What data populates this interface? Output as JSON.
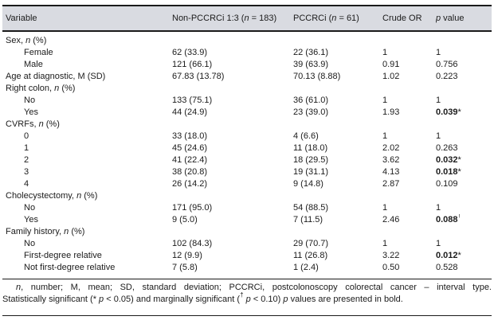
{
  "colors": {
    "header_background": "#d9dbe1",
    "rule": "#1a1a1a",
    "text": "#1b1b1b"
  },
  "table": {
    "columns": [
      "Variable",
      "Non-PCCRCi 1:3 (n = 183)",
      "PCCRCi (n = 61)",
      "Crude OR",
      "p value"
    ],
    "rows": [
      {
        "label": "Sex, n (%)",
        "indent": false,
        "non_pccrci": "",
        "pccrci": "",
        "crude_or": "",
        "p_value": "",
        "p_marker": "",
        "p_bold": false
      },
      {
        "label": "Female",
        "indent": true,
        "non_pccrci": "62 (33.9)",
        "pccrci": "22 (36.1)",
        "crude_or": "1",
        "p_value": "1",
        "p_marker": "",
        "p_bold": false
      },
      {
        "label": "Male",
        "indent": true,
        "non_pccrci": "121 (66.1)",
        "pccrci": "39 (63.9)",
        "crude_or": "0.91",
        "p_value": "0.756",
        "p_marker": "",
        "p_bold": false
      },
      {
        "label": "Age at diagnostic, M (SD)",
        "indent": false,
        "non_pccrci": "67.83 (13.78)",
        "pccrci": "70.13 (8.88)",
        "crude_or": "1.02",
        "p_value": "0.223",
        "p_marker": "",
        "p_bold": false
      },
      {
        "label": "Right colon, n (%)",
        "indent": false,
        "non_pccrci": "",
        "pccrci": "",
        "crude_or": "",
        "p_value": "",
        "p_marker": "",
        "p_bold": false
      },
      {
        "label": "No",
        "indent": true,
        "non_pccrci": "133 (75.1)",
        "pccrci": "36 (61.0)",
        "crude_or": "1",
        "p_value": "1",
        "p_marker": "",
        "p_bold": false
      },
      {
        "label": "Yes",
        "indent": true,
        "non_pccrci": "44 (24.9)",
        "pccrci": "23 (39.0)",
        "crude_or": "1.93",
        "p_value": "0.039",
        "p_marker": "*",
        "p_bold": true
      },
      {
        "label": "CVRFs, n (%)",
        "indent": false,
        "non_pccrci": "",
        "pccrci": "",
        "crude_or": "",
        "p_value": "",
        "p_marker": "",
        "p_bold": false
      },
      {
        "label": "0",
        "indent": true,
        "non_pccrci": "33 (18.0)",
        "pccrci": "4 (6.6)",
        "crude_or": "1",
        "p_value": "1",
        "p_marker": "",
        "p_bold": false
      },
      {
        "label": "1",
        "indent": true,
        "non_pccrci": "45 (24.6)",
        "pccrci": "11 (18.0)",
        "crude_or": "2.02",
        "p_value": "0.263",
        "p_marker": "",
        "p_bold": false
      },
      {
        "label": "2",
        "indent": true,
        "non_pccrci": "41 (22.4)",
        "pccrci": "18 (29.5)",
        "crude_or": "3.62",
        "p_value": "0.032",
        "p_marker": "*",
        "p_bold": true
      },
      {
        "label": "3",
        "indent": true,
        "non_pccrci": "38 (20.8)",
        "pccrci": "19 (31.1)",
        "crude_or": "4.13",
        "p_value": "0.018",
        "p_marker": "*",
        "p_bold": true
      },
      {
        "label": "4",
        "indent": true,
        "non_pccrci": "26 (14.2)",
        "pccrci": "9 (14.8)",
        "crude_or": "2.87",
        "p_value": "0.109",
        "p_marker": "",
        "p_bold": false
      },
      {
        "label": "Cholecystectomy, n (%)",
        "indent": false,
        "non_pccrci": "",
        "pccrci": "",
        "crude_or": "",
        "p_value": "",
        "p_marker": "",
        "p_bold": false
      },
      {
        "label": "No",
        "indent": true,
        "non_pccrci": "171 (95.0)",
        "pccrci": "54 (88.5)",
        "crude_or": "1",
        "p_value": "1",
        "p_marker": "",
        "p_bold": false
      },
      {
        "label": "Yes",
        "indent": true,
        "non_pccrci": "9 (5.0)",
        "pccrci": "7 (11.5)",
        "crude_or": "2.46",
        "p_value": "0.088",
        "p_marker": "†",
        "p_bold": true
      },
      {
        "label": "Family history, n (%)",
        "indent": false,
        "non_pccrci": "",
        "pccrci": "",
        "crude_or": "",
        "p_value": "",
        "p_marker": "",
        "p_bold": false
      },
      {
        "label": "No",
        "indent": true,
        "non_pccrci": "102 (84.3)",
        "pccrci": "29 (70.7)",
        "crude_or": "1",
        "p_value": "1",
        "p_marker": "",
        "p_bold": false
      },
      {
        "label": "First-degree relative",
        "indent": true,
        "non_pccrci": "12 (9.9)",
        "pccrci": "11 (26.8)",
        "crude_or": "3.22",
        "p_value": "0.012",
        "p_marker": "*",
        "p_bold": true
      },
      {
        "label": "Not first-degree relative",
        "indent": true,
        "non_pccrci": "7 (5.8)",
        "pccrci": "1 (2.4)",
        "crude_or": "0.50",
        "p_value": "0.528",
        "p_marker": "",
        "p_bold": false
      }
    ]
  },
  "footnote": {
    "line1_segments": [
      {
        "text": "n",
        "italic": true,
        "sup": false
      },
      {
        "text": ", number; M, mean; SD, standard deviation; PCCRCi, postcolonoscopy colorectal cancer – interval type.",
        "italic": false,
        "sup": false
      }
    ],
    "line2_segments": [
      {
        "text": "Statistically significant (* ",
        "italic": false,
        "sup": false
      },
      {
        "text": "p",
        "italic": true,
        "sup": false
      },
      {
        "text": " < 0.05) and marginally significant (",
        "italic": false,
        "sup": false
      },
      {
        "text": "†",
        "italic": false,
        "sup": true
      },
      {
        "text": " ",
        "italic": false,
        "sup": false
      },
      {
        "text": "p",
        "italic": true,
        "sup": false
      },
      {
        "text": " < 0.10) ",
        "italic": false,
        "sup": false
      },
      {
        "text": "p",
        "italic": true,
        "sup": false
      },
      {
        "text": " values are presented in bold.",
        "italic": false,
        "sup": false
      }
    ]
  }
}
